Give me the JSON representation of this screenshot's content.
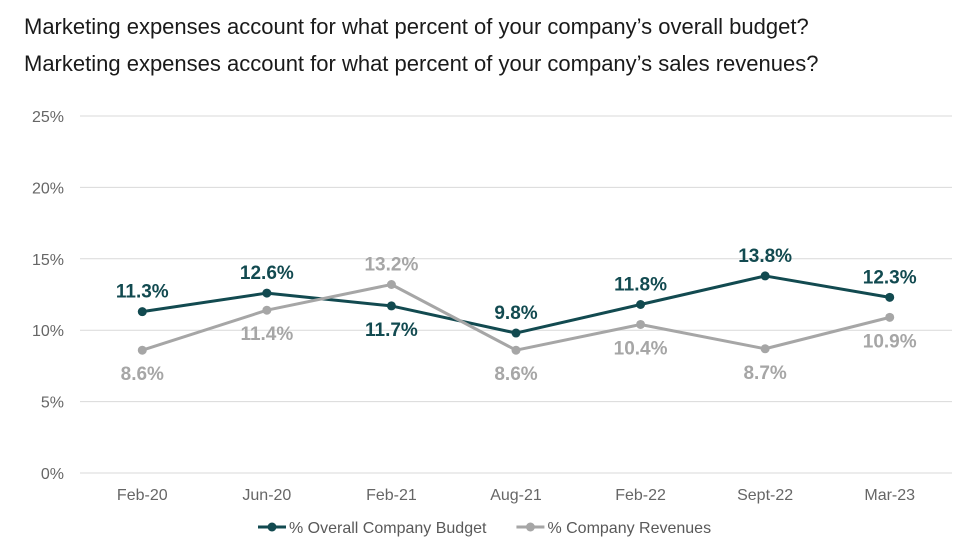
{
  "titles": [
    "Marketing expenses account for what percent of your company’s overall budget?",
    "Marketing expenses account for what percent of your company’s sales revenues?"
  ],
  "chart_data": {
    "type": "line",
    "categories": [
      "Feb-20",
      "Jun-20",
      "Feb-21",
      "Aug-21",
      "Feb-22",
      "Sept-22",
      "Mar-23"
    ],
    "ylim": [
      0,
      25
    ],
    "yticks": [
      0,
      5,
      10,
      15,
      20,
      25
    ],
    "ytick_labels": [
      "0%",
      "5%",
      "10%",
      "15%",
      "20%",
      "25%"
    ],
    "grid": "horizontal",
    "legend_position": "bottom",
    "series": [
      {
        "name": "% Overall Company Budget",
        "color": "#124a50",
        "values": [
          11.3,
          12.6,
          11.7,
          9.8,
          11.8,
          13.8,
          12.3
        ],
        "labels": [
          "11.3%",
          "12.6%",
          "11.7%",
          "9.8%",
          "11.8%",
          "13.8%",
          "12.3%"
        ]
      },
      {
        "name": "% Company Revenues",
        "color": "#a6a6a6",
        "values": [
          8.6,
          11.4,
          13.2,
          8.6,
          10.4,
          8.7,
          10.9
        ],
        "labels": [
          "8.6%",
          "11.4%",
          "13.2%",
          "8.6%",
          "10.4%",
          "8.7%",
          "10.9%"
        ]
      }
    ]
  }
}
